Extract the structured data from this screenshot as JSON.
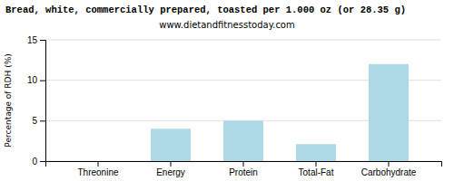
{
  "chart_data": {
    "type": "bar",
    "title": "Bread, white, commercially prepared, toasted per 1.000 oz (or 28.35 g)",
    "subtitle": "www.dietandfitnesstoday.com",
    "ylabel": "Percentage of RDH (%)",
    "categories": [
      "Threonine",
      "Energy",
      "Protein",
      "Total-Fat",
      "Carbohydrate"
    ],
    "values": [
      0.0,
      4.0,
      5.0,
      2.1,
      12.0
    ],
    "color": "#add8e6",
    "ylim": [
      0,
      15
    ],
    "yticks": [
      0,
      5,
      10,
      15
    ],
    "grid": true
  }
}
